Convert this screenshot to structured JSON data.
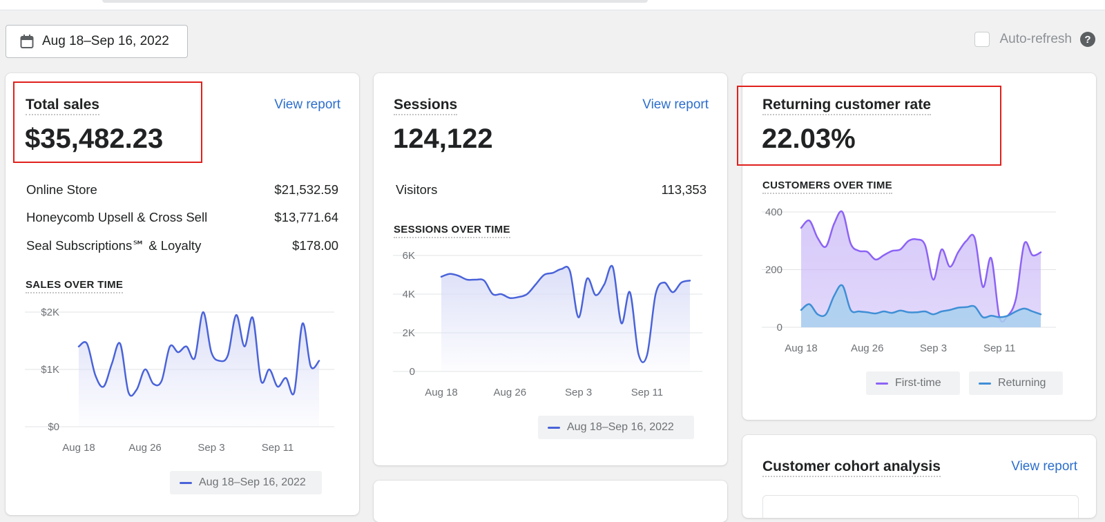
{
  "date_range": {
    "label": "Aug 18–Sep 16, 2022",
    "icon": "calendar-icon"
  },
  "auto_refresh": {
    "label": "Auto-refresh",
    "checked": false,
    "help_icon": "?"
  },
  "colors": {
    "accent": "#2c6ecb",
    "line_primary": "#4a63d9",
    "first_time": "#8c63f5",
    "returning": "#3f8fd6",
    "highlight": "#e0201c"
  },
  "total_sales": {
    "title": "Total sales",
    "view_report": "View report",
    "value": "$35,482.23",
    "breakdown": [
      {
        "label": "Online Store",
        "value": "$21,532.59"
      },
      {
        "label": "Honeycomb Upsell & Cross Sell",
        "value": "$13,771.64"
      },
      {
        "label": "Seal Subscriptions℠ & Loyalty",
        "value": "$178.00"
      }
    ],
    "chart_label": "SALES OVER TIME",
    "legend": "Aug 18–Sep 16, 2022"
  },
  "sessions": {
    "title": "Sessions",
    "view_report": "View report",
    "value": "124,122",
    "visitors_label": "Visitors",
    "visitors_value": "113,353",
    "chart_label": "SESSIONS OVER TIME",
    "legend": "Aug 18–Sep 16, 2022"
  },
  "returning": {
    "title": "Returning customer rate",
    "value": "22.03%",
    "chart_label": "CUSTOMERS OVER TIME",
    "legend_first": "First-time",
    "legend_returning": "Returning"
  },
  "cohort": {
    "title": "Customer cohort analysis",
    "view_report": "View report"
  },
  "chart_data": [
    {
      "type": "line",
      "title": "SALES OVER TIME",
      "x": [
        "Aug 18",
        "Aug 19",
        "Aug 20",
        "Aug 21",
        "Aug 22",
        "Aug 23",
        "Aug 24",
        "Aug 25",
        "Aug 26",
        "Aug 27",
        "Aug 28",
        "Aug 29",
        "Aug 30",
        "Aug 31",
        "Sep 1",
        "Sep 2",
        "Sep 3",
        "Sep 4",
        "Sep 5",
        "Sep 6",
        "Sep 7",
        "Sep 8",
        "Sep 9",
        "Sep 10",
        "Sep 11",
        "Sep 12",
        "Sep 13",
        "Sep 14",
        "Sep 15",
        "Sep 16"
      ],
      "xticks": [
        "Aug 18",
        "Aug 26",
        "Sep 3",
        "Sep 11"
      ],
      "yticks": [
        "$0",
        "$1K",
        "$2K"
      ],
      "ylim": [
        0,
        2000
      ],
      "series": [
        {
          "name": "Aug 18–Sep 16, 2022",
          "values": [
            1400,
            1450,
            900,
            700,
            1100,
            1450,
            600,
            650,
            1000,
            750,
            800,
            1400,
            1300,
            1400,
            1200,
            2000,
            1300,
            1150,
            1250,
            1950,
            1400,
            1900,
            800,
            1000,
            700,
            850,
            600,
            1800,
            1050,
            1150
          ]
        }
      ]
    },
    {
      "type": "line",
      "title": "SESSIONS OVER TIME",
      "x": [
        "Aug 18",
        "Aug 19",
        "Aug 20",
        "Aug 21",
        "Aug 22",
        "Aug 23",
        "Aug 24",
        "Aug 25",
        "Aug 26",
        "Aug 27",
        "Aug 28",
        "Aug 29",
        "Aug 30",
        "Aug 31",
        "Sep 1",
        "Sep 2",
        "Sep 3",
        "Sep 4",
        "Sep 5",
        "Sep 6",
        "Sep 7",
        "Sep 8",
        "Sep 9",
        "Sep 10",
        "Sep 11",
        "Sep 12",
        "Sep 13",
        "Sep 14",
        "Sep 15",
        "Sep 16"
      ],
      "xticks": [
        "Aug 18",
        "Aug 26",
        "Sep 3",
        "Sep 11"
      ],
      "yticks": [
        "0",
        "2K",
        "4K",
        "6K"
      ],
      "ylim": [
        0,
        6000
      ],
      "series": [
        {
          "name": "Aug 18–Sep 16, 2022",
          "values": [
            4900,
            5050,
            4950,
            4750,
            4750,
            4700,
            4000,
            4000,
            3800,
            3850,
            4000,
            4500,
            5000,
            5100,
            5300,
            5200,
            2800,
            4800,
            3950,
            4500,
            5400,
            2500,
            4100,
            900,
            850,
            4000,
            4600,
            4100,
            4600,
            4700
          ]
        }
      ]
    },
    {
      "type": "area",
      "title": "CUSTOMERS OVER TIME",
      "x": [
        "Aug 18",
        "Aug 19",
        "Aug 20",
        "Aug 21",
        "Aug 22",
        "Aug 23",
        "Aug 24",
        "Aug 25",
        "Aug 26",
        "Aug 27",
        "Aug 28",
        "Aug 29",
        "Aug 30",
        "Aug 31",
        "Sep 1",
        "Sep 2",
        "Sep 3",
        "Sep 4",
        "Sep 5",
        "Sep 6",
        "Sep 7",
        "Sep 8",
        "Sep 9",
        "Sep 10",
        "Sep 11",
        "Sep 12",
        "Sep 13",
        "Sep 14",
        "Sep 15",
        "Sep 16"
      ],
      "xticks": [
        "Aug 18",
        "Aug 26",
        "Sep 3",
        "Sep 11"
      ],
      "yticks": [
        "0",
        "200",
        "400"
      ],
      "ylim": [
        0,
        400
      ],
      "series": [
        {
          "name": "First-time",
          "values": [
            345,
            370,
            310,
            280,
            360,
            400,
            290,
            265,
            262,
            235,
            250,
            265,
            270,
            300,
            305,
            285,
            165,
            270,
            210,
            260,
            300,
            310,
            140,
            240,
            35,
            40,
            100,
            290,
            250,
            260
          ]
        },
        {
          "name": "Returning",
          "values": [
            60,
            80,
            45,
            45,
            110,
            145,
            60,
            55,
            52,
            48,
            55,
            50,
            58,
            52,
            52,
            55,
            45,
            55,
            60,
            68,
            70,
            72,
            35,
            40,
            35,
            40,
            55,
            65,
            55,
            45
          ]
        }
      ]
    }
  ]
}
